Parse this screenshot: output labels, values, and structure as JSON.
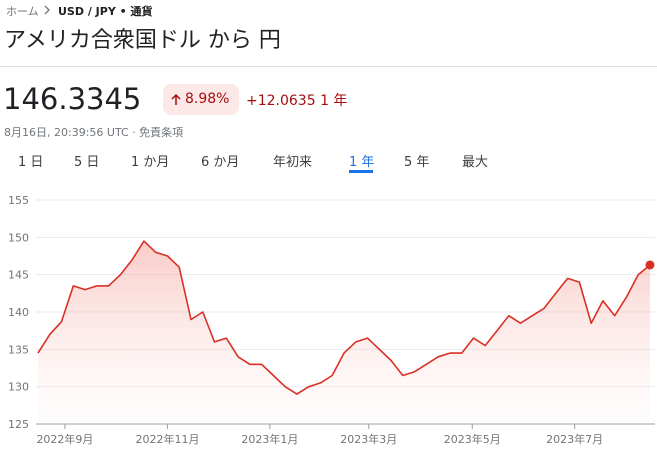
{
  "breadcrumb": {
    "home": "ホーム",
    "current": "USD / JPY • 通貨"
  },
  "header": {
    "title": "アメリカ合衆国ドル から 円",
    "price": "146.3345",
    "change_pct": "8.98%",
    "change_abs": "+12.0635 1 年",
    "timestamp": "8月16日, 20:39:56 UTC · 免責条項"
  },
  "tabs": {
    "items": [
      "1 日",
      "5 日",
      "1 か月",
      "6 か月",
      "年初来",
      "1 年",
      "5 年",
      "最大"
    ],
    "active": 5
  },
  "chart_data": {
    "type": "line",
    "color": "#d93025",
    "values": [
      134.5,
      137,
      138.7,
      143.5,
      143,
      143.5,
      143.5,
      145,
      147,
      149.5,
      148,
      147.5,
      146,
      139,
      140,
      136,
      136.5,
      134,
      133,
      133,
      131.5,
      130,
      129,
      130,
      130.5,
      131.5,
      134.5,
      136,
      136.5,
      135,
      133.5,
      131.5,
      132,
      133,
      134,
      134.5,
      134.5,
      136.5,
      135.5,
      137.5,
      139.5,
      138.5,
      139.5,
      140.5,
      142.5,
      144.5,
      144,
      138.5,
      141.5,
      139.5,
      142,
      145,
      146.3
    ],
    "xlim": [
      0,
      52
    ],
    "xticks": [
      {
        "value": 2.29,
        "label": "2022年9月"
      },
      {
        "value": 11,
        "label": "2022年11月"
      },
      {
        "value": 19.7,
        "label": "2023年1月"
      },
      {
        "value": 28.1,
        "label": "2023年3月"
      },
      {
        "value": 36.9,
        "label": "2023年5月"
      },
      {
        "value": 45.6,
        "label": "2023年7月"
      }
    ],
    "ylim": [
      125,
      155
    ],
    "yticks": [
      125,
      130,
      135,
      140,
      145,
      150,
      155
    ],
    "grid": true
  }
}
